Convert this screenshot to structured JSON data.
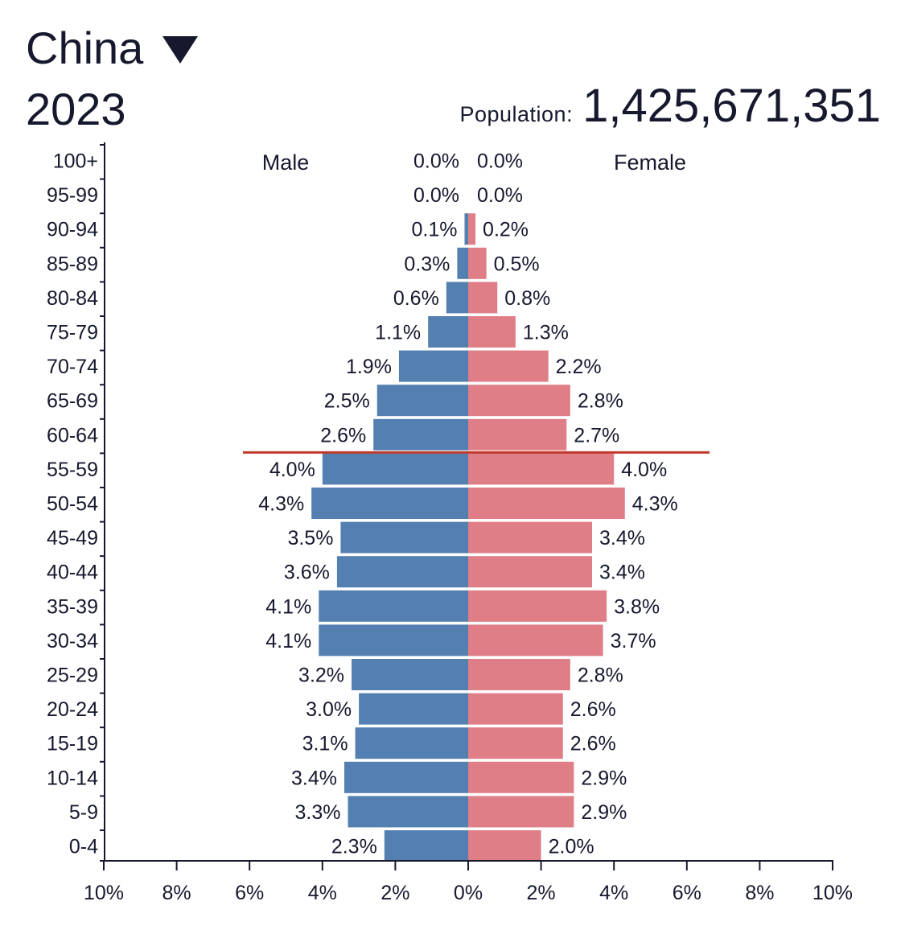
{
  "header": {
    "country": "China",
    "year": "2023",
    "population_label": "Population:",
    "population_value": "1,425,671,351"
  },
  "colors": {
    "male": "#5480b1",
    "female": "#e07e87",
    "marker": "#c0392b",
    "text": "#16192e"
  },
  "chart_data": {
    "type": "bar",
    "orientation": "horizontal",
    "subtype": "population-pyramid",
    "categories": [
      "100+",
      "95-99",
      "90-94",
      "85-89",
      "80-84",
      "75-79",
      "70-74",
      "65-69",
      "60-64",
      "55-59",
      "50-54",
      "45-49",
      "40-44",
      "35-39",
      "30-34",
      "25-29",
      "20-24",
      "15-19",
      "10-14",
      "5-9",
      "0-4"
    ],
    "series": [
      {
        "name": "Male",
        "color": "#5480b1",
        "values": [
          0.0,
          0.0,
          0.1,
          0.3,
          0.6,
          1.1,
          1.9,
          2.5,
          2.6,
          4.0,
          4.3,
          3.5,
          3.6,
          4.1,
          4.1,
          3.2,
          3.0,
          3.1,
          3.4,
          3.3,
          2.3
        ],
        "labels": [
          "0.0%",
          "0.0%",
          "0.1%",
          "0.3%",
          "0.6%",
          "1.1%",
          "1.9%",
          "2.5%",
          "2.6%",
          "4.0%",
          "4.3%",
          "3.5%",
          "3.6%",
          "4.1%",
          "4.1%",
          "3.2%",
          "3.0%",
          "3.1%",
          "3.4%",
          "3.3%",
          "2.3%"
        ]
      },
      {
        "name": "Female",
        "color": "#e07e87",
        "values": [
          0.0,
          0.0,
          0.2,
          0.5,
          0.8,
          1.3,
          2.2,
          2.8,
          2.7,
          4.0,
          4.3,
          3.4,
          3.4,
          3.8,
          3.7,
          2.8,
          2.6,
          2.6,
          2.9,
          2.9,
          2.0
        ],
        "labels": [
          "0.0%",
          "0.0%",
          "0.2%",
          "0.5%",
          "0.8%",
          "1.3%",
          "2.2%",
          "2.8%",
          "2.7%",
          "4.0%",
          "4.3%",
          "3.4%",
          "3.4%",
          "3.8%",
          "3.7%",
          "2.8%",
          "2.6%",
          "2.6%",
          "2.9%",
          "2.9%",
          "2.0%"
        ]
      }
    ],
    "xlim": [
      -10,
      10
    ],
    "xticks": [
      -10,
      -8,
      -6,
      -4,
      -2,
      0,
      2,
      4,
      6,
      8,
      10
    ],
    "xtick_labels": [
      "10%",
      "8%",
      "6%",
      "4%",
      "2%",
      "0%",
      "2%",
      "4%",
      "6%",
      "8%",
      "10%"
    ],
    "marker_line": {
      "between": [
        "60-64",
        "55-59"
      ],
      "color": "#c0392b"
    },
    "grid": false
  }
}
